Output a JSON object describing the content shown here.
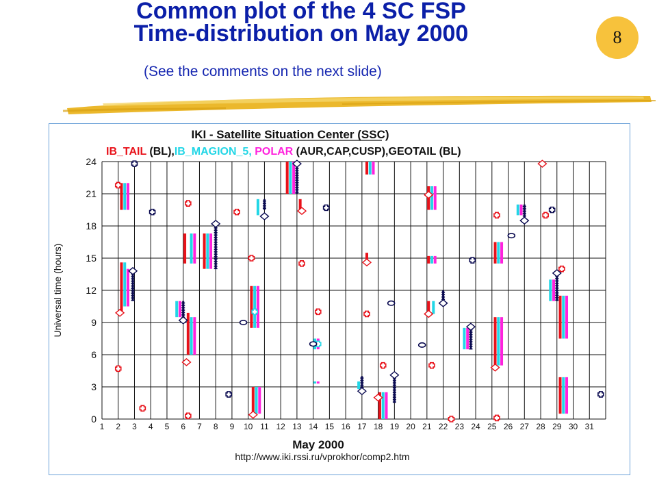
{
  "slide": {
    "title_line1": "Common plot of the 4 SC FSP",
    "title_line2": "Time-distribution on May 2000",
    "subtitle": "(See the comments on the next slide)",
    "page_number": "8",
    "colors": {
      "title": "#0b1fa8",
      "badge": "#f7c23c",
      "brush": "#e9b21a"
    }
  },
  "chart_data": {
    "type": "scatter",
    "title": "IKI - Satellite Situation Center (SSC)",
    "legend": [
      {
        "text": "IB_TAIL",
        "color": "#e8121a"
      },
      {
        "text": " (BL),",
        "color": "#111111"
      },
      {
        "text": "IB_MAGION_5,",
        "color": "#22d6e6"
      },
      {
        "text": " POLAR",
        "color": "#ff22dd"
      },
      {
        "text": " (AUR,CAP,CUSP),",
        "color": "#111111"
      },
      {
        "text": "GEOTAIL",
        "color": "#111111"
      },
      {
        "text": " (BL)",
        "color": "#111111"
      }
    ],
    "xlabel": "May   2000",
    "ylabel": "Universal time (hours)",
    "url": "http://www.iki.rssi.ru/vprokhor/comp2.htm",
    "xlim": [
      1,
      32
    ],
    "ylim": [
      0,
      24
    ],
    "xticks": [
      1,
      2,
      3,
      4,
      5,
      6,
      7,
      8,
      9,
      10,
      11,
      12,
      13,
      14,
      15,
      16,
      17,
      18,
      19,
      20,
      21,
      22,
      23,
      24,
      25,
      26,
      27,
      28,
      29,
      30,
      31
    ],
    "yticks": [
      0,
      3,
      6,
      9,
      12,
      15,
      18,
      21,
      24
    ],
    "grid": true,
    "series_colors": {
      "IB_TAIL": "#e8121a",
      "IB_MAGION_5": "#22d6e6",
      "POLAR": "#ff22dd",
      "GEOTAIL": "#0a0a50"
    },
    "intervals": {
      "IB_TAIL": [
        [
          2.2,
          19.5,
          22.0
        ],
        [
          2.2,
          10.0,
          14.6
        ],
        [
          6.1,
          14.5,
          17.3
        ],
        [
          6.3,
          6.0,
          9.9
        ],
        [
          7.3,
          14.0,
          17.3
        ],
        [
          10.2,
          8.5,
          12.4
        ],
        [
          10.3,
          0.5,
          3.0
        ],
        [
          12.4,
          21.0,
          24.0
        ],
        [
          13.2,
          19.5,
          20.5
        ],
        [
          17.3,
          22.8,
          24.0
        ],
        [
          17.3,
          14.5,
          15.5
        ],
        [
          18.1,
          0.0,
          2.5
        ],
        [
          21.1,
          14.5,
          15.2
        ],
        [
          21.1,
          19.5,
          21.7
        ],
        [
          21.1,
          9.8,
          11.0
        ],
        [
          25.2,
          5.0,
          9.5
        ],
        [
          25.2,
          14.5,
          16.5
        ],
        [
          29.2,
          7.5,
          11.5
        ],
        [
          29.2,
          0.5,
          3.9
        ]
      ],
      "IB_MAGION_5": [
        [
          2.4,
          19.5,
          22.0
        ],
        [
          2.4,
          10.5,
          14.6
        ],
        [
          5.6,
          9.5,
          11.0
        ],
        [
          6.5,
          6.0,
          9.5
        ],
        [
          6.5,
          14.5,
          17.3
        ],
        [
          7.5,
          14.0,
          17.3
        ],
        [
          10.4,
          8.5,
          12.4
        ],
        [
          10.5,
          0.5,
          3.0
        ],
        [
          10.6,
          19.0,
          20.5
        ],
        [
          12.6,
          21.0,
          24.0
        ],
        [
          14.1,
          6.5,
          7.5
        ],
        [
          14.1,
          3.5,
          3.5
        ],
        [
          16.8,
          2.8,
          3.5
        ],
        [
          17.5,
          22.8,
          24.0
        ],
        [
          18.3,
          0.0,
          2.5
        ],
        [
          21.3,
          14.5,
          15.2
        ],
        [
          21.3,
          19.5,
          21.7
        ],
        [
          21.4,
          9.8,
          11.0
        ],
        [
          23.3,
          6.5,
          8.5
        ],
        [
          25.4,
          5.0,
          9.5
        ],
        [
          25.4,
          14.5,
          16.5
        ],
        [
          26.6,
          19.0,
          20.0
        ],
        [
          28.6,
          11.0,
          13.0
        ],
        [
          29.4,
          7.5,
          11.5
        ],
        [
          29.4,
          0.5,
          3.9
        ]
      ],
      "POLAR": [
        [
          2.6,
          19.5,
          22.0
        ],
        [
          2.6,
          10.5,
          14.0
        ],
        [
          5.8,
          9.5,
          11.0
        ],
        [
          6.7,
          6.0,
          9.5
        ],
        [
          6.7,
          14.5,
          17.3
        ],
        [
          7.7,
          14.0,
          17.3
        ],
        [
          10.6,
          8.5,
          12.4
        ],
        [
          10.7,
          0.5,
          3.0
        ],
        [
          12.8,
          21.0,
          24.0
        ],
        [
          14.3,
          6.5,
          7.5
        ],
        [
          14.3,
          3.5,
          3.5
        ],
        [
          17.7,
          22.8,
          24.0
        ],
        [
          18.5,
          0.0,
          2.5
        ],
        [
          21.5,
          14.5,
          15.2
        ],
        [
          21.5,
          19.5,
          21.7
        ],
        [
          23.5,
          6.5,
          8.5
        ],
        [
          25.6,
          5.0,
          9.5
        ],
        [
          25.6,
          14.5,
          16.5
        ],
        [
          26.8,
          19.0,
          20.0
        ],
        [
          28.8,
          11.0,
          13.0
        ],
        [
          29.6,
          7.5,
          11.5
        ],
        [
          29.6,
          0.5,
          3.9
        ]
      ],
      "GEOTAIL": [
        [
          2.9,
          11.0,
          13.7
        ],
        [
          6.0,
          9.5,
          11.0
        ],
        [
          8.0,
          14.0,
          18.0
        ],
        [
          11.0,
          19.5,
          20.5
        ],
        [
          13.0,
          21.0,
          24.0
        ],
        [
          17.0,
          2.5,
          4.0
        ],
        [
          19.0,
          1.5,
          4.0
        ],
        [
          22.0,
          11.0,
          12.0
        ],
        [
          23.7,
          6.5,
          8.5
        ],
        [
          27.0,
          18.5,
          20.0
        ],
        [
          29.0,
          11.0,
          13.5
        ]
      ]
    },
    "markers": {
      "red_cross": [
        [
          2.0,
          21.8
        ],
        [
          2.0,
          4.7
        ],
        [
          3.5,
          1.0
        ],
        [
          6.3,
          20.1
        ],
        [
          6.3,
          0.3
        ],
        [
          9.3,
          19.3
        ],
        [
          10.2,
          15.0
        ],
        [
          13.3,
          14.5
        ],
        [
          14.3,
          10.0
        ],
        [
          17.3,
          9.8
        ],
        [
          18.3,
          5.0
        ],
        [
          21.3,
          5.0
        ],
        [
          22.5,
          0.0
        ],
        [
          25.3,
          19.0
        ],
        [
          25.3,
          0.1
        ],
        [
          28.3,
          19.0
        ],
        [
          29.3,
          14.0
        ]
      ],
      "red_diamond": [
        [
          2.1,
          9.9
        ],
        [
          6.2,
          5.3
        ],
        [
          13.3,
          19.4
        ],
        [
          17.3,
          14.6
        ],
        [
          21.1,
          20.9
        ],
        [
          21.1,
          9.8
        ],
        [
          25.2,
          4.8
        ],
        [
          28.1,
          23.8
        ],
        [
          18.0,
          2.0
        ],
        [
          10.3,
          0.4
        ]
      ],
      "navy_cross": [
        [
          3.0,
          23.8
        ],
        [
          4.1,
          19.3
        ],
        [
          8.8,
          2.3
        ],
        [
          14.8,
          19.7
        ],
        [
          23.8,
          14.8
        ],
        [
          31.7,
          2.3
        ],
        [
          28.7,
          19.5
        ]
      ],
      "navy_oval": [
        [
          9.7,
          9.0
        ],
        [
          14.0,
          7.0
        ],
        [
          18.8,
          10.8
        ],
        [
          20.7,
          6.9
        ],
        [
          26.2,
          17.1
        ]
      ],
      "navy_diamond": [
        [
          2.9,
          13.8
        ],
        [
          6.0,
          9.2
        ],
        [
          8.0,
          18.2
        ],
        [
          11.0,
          18.9
        ],
        [
          13.0,
          23.8
        ],
        [
          17.0,
          2.6
        ],
        [
          19.0,
          4.1
        ],
        [
          22.0,
          10.8
        ],
        [
          23.7,
          8.6
        ],
        [
          27.0,
          18.5
        ],
        [
          29.0,
          13.6
        ]
      ],
      "cyan_cross": [
        [
          10.4,
          10.0
        ],
        [
          14.3,
          7.0
        ]
      ]
    }
  }
}
